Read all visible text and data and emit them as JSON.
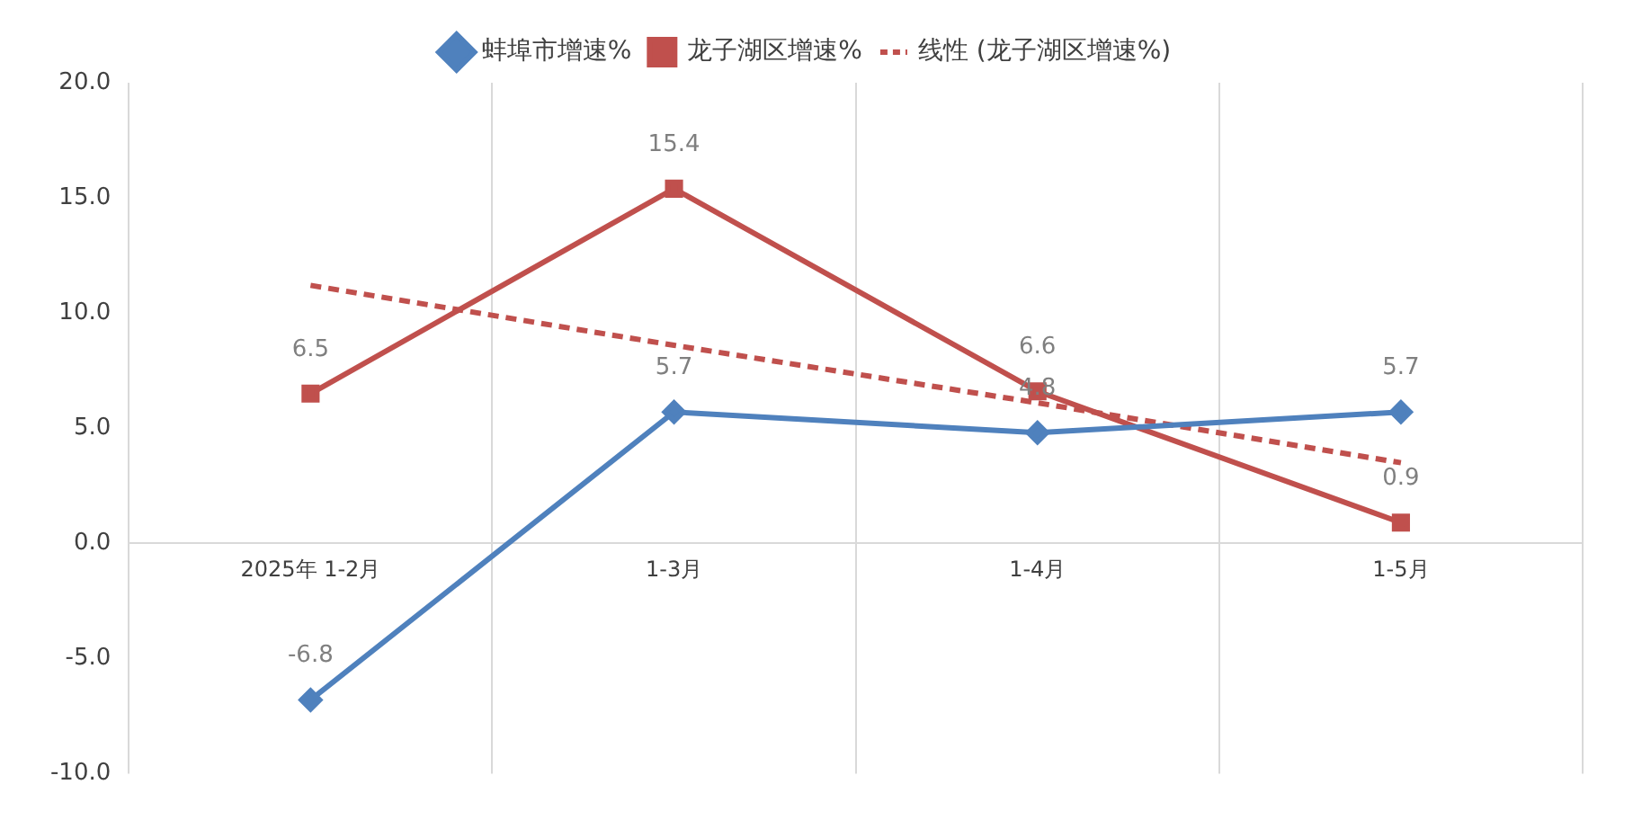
{
  "chart_data": {
    "type": "line",
    "categories": [
      "2025年 1-2月",
      "1-3月",
      "1-4月",
      "1-5月"
    ],
    "series": [
      {
        "name": "蚌埠市增速%",
        "color": "#4f81bd",
        "values": [
          -6.8,
          5.7,
          4.8,
          5.7
        ],
        "marker": "diamond",
        "value_labels": [
          "-6.8",
          "5.7",
          "4.8",
          "5.7"
        ]
      },
      {
        "name": "龙子湖区增速%",
        "color": "#c0504d",
        "values": [
          6.5,
          15.4,
          6.6,
          0.9
        ],
        "marker": "square",
        "value_labels": [
          "6.5",
          "15.4",
          "6.6",
          "0.9"
        ]
      },
      {
        "name": "线性 (龙子湖区增速%)",
        "color": "#c0504d",
        "values": [
          11.2,
          8.6,
          6.1,
          3.5
        ],
        "marker": "none",
        "line_style": "dashed"
      }
    ],
    "ylim": [
      -10,
      20
    ],
    "yticks": [
      {
        "value": -10,
        "label": "-10.0"
      },
      {
        "value": -5,
        "label": "-5.0"
      },
      {
        "value": 0,
        "label": "0.0"
      },
      {
        "value": 5,
        "label": "5.0"
      },
      {
        "value": 10,
        "label": "10.0"
      },
      {
        "value": 15,
        "label": "15.0"
      },
      {
        "value": 20,
        "label": "20.0"
      }
    ],
    "grid": "x",
    "legend": "top"
  }
}
